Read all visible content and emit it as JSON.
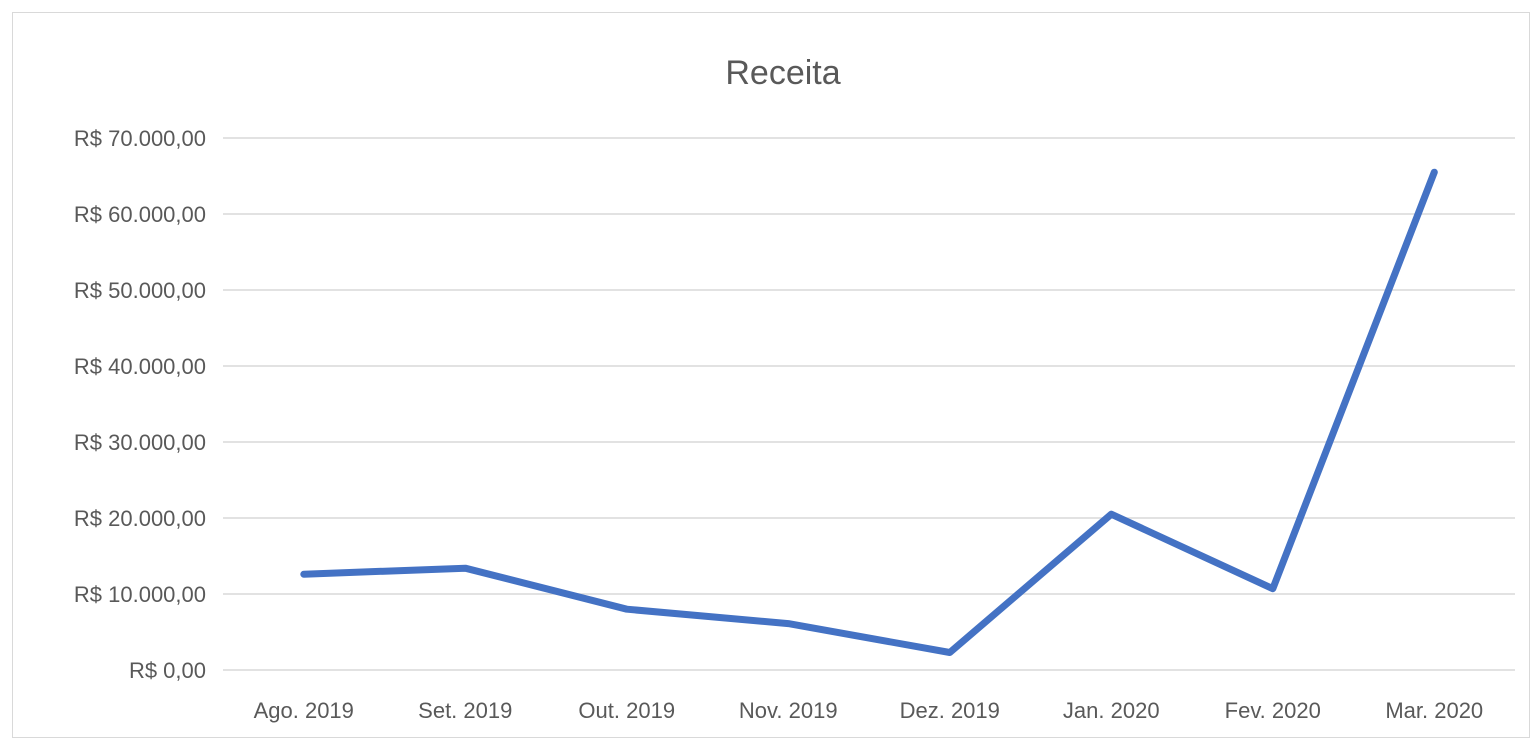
{
  "chart_data": {
    "type": "line",
    "title": "Receita",
    "xlabel": "",
    "ylabel": "",
    "categories": [
      "Ago. 2019",
      "Set. 2019",
      "Out. 2019",
      "Nov. 2019",
      "Dez. 2019",
      "Jan. 2020",
      "Fev. 2020",
      "Mar. 2020"
    ],
    "series": [
      {
        "values": [
          12600,
          13400,
          8000,
          6100,
          2300,
          20500,
          10700,
          65500
        ],
        "color": "#4472c4"
      }
    ],
    "ylim": [
      0,
      70000
    ],
    "yticks": [
      0,
      10000,
      20000,
      30000,
      40000,
      50000,
      60000,
      70000
    ],
    "ytick_labels": [
      "R$ 0,00",
      "R$ 10.000,00",
      "R$ 20.000,00",
      "R$ 30.000,00",
      "R$ 40.000,00",
      "R$ 50.000,00",
      "R$ 60.000,00",
      "R$ 70.000,00"
    ],
    "grid": true,
    "legend": "none"
  }
}
